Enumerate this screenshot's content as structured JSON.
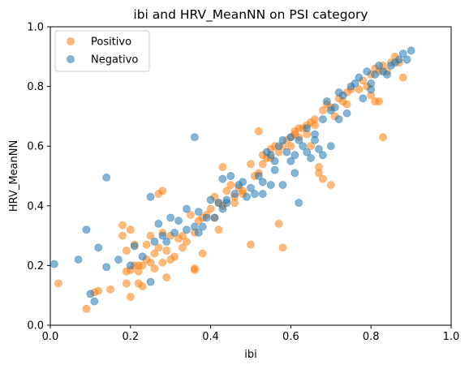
{
  "chart_data": {
    "type": "scatter",
    "title": "ibi and HRV_MeanNN on PSI category",
    "xlabel": "ibi",
    "ylabel": "HRV_MeanNN",
    "xlim": [
      0,
      1
    ],
    "ylim": [
      0,
      1
    ],
    "xticks": [
      "0.0",
      "0.2",
      "0.4",
      "0.6",
      "0.8",
      "1.0"
    ],
    "yticks": [
      "0.0",
      "0.2",
      "0.4",
      "0.6",
      "0.8",
      "1.0"
    ],
    "grid": false,
    "legend_position": "top-left",
    "series": [
      {
        "name": "Positivo",
        "color": "#ff7f0e",
        "points": [
          [
            0.02,
            0.14
          ],
          [
            0.09,
            0.055
          ],
          [
            0.11,
            0.11
          ],
          [
            0.12,
            0.115
          ],
          [
            0.18,
            0.335
          ],
          [
            0.18,
            0.3
          ],
          [
            0.19,
            0.25
          ],
          [
            0.19,
            0.18
          ],
          [
            0.19,
            0.14
          ],
          [
            0.2,
            0.185
          ],
          [
            0.2,
            0.095
          ],
          [
            0.2,
            0.32
          ],
          [
            0.21,
            0.27
          ],
          [
            0.21,
            0.2
          ],
          [
            0.22,
            0.2
          ],
          [
            0.22,
            0.14
          ],
          [
            0.23,
            0.2
          ],
          [
            0.23,
            0.13
          ],
          [
            0.24,
            0.22
          ],
          [
            0.24,
            0.27
          ],
          [
            0.25,
            0.3
          ],
          [
            0.25,
            0.21
          ],
          [
            0.26,
            0.24
          ],
          [
            0.26,
            0.19
          ],
          [
            0.27,
            0.44
          ],
          [
            0.27,
            0.26
          ],
          [
            0.28,
            0.45
          ],
          [
            0.28,
            0.31
          ],
          [
            0.28,
            0.21
          ],
          [
            0.29,
            0.25
          ],
          [
            0.29,
            0.16
          ],
          [
            0.3,
            0.3
          ],
          [
            0.3,
            0.22
          ],
          [
            0.31,
            0.23
          ],
          [
            0.32,
            0.29
          ],
          [
            0.33,
            0.26
          ],
          [
            0.34,
            0.28
          ],
          [
            0.35,
            0.37
          ],
          [
            0.36,
            0.31
          ],
          [
            0.36,
            0.19
          ],
          [
            0.36,
            0.185
          ],
          [
            0.37,
            0.35
          ],
          [
            0.38,
            0.24
          ],
          [
            0.38,
            0.36
          ],
          [
            0.39,
            0.37
          ],
          [
            0.4,
            0.39
          ],
          [
            0.41,
            0.43
          ],
          [
            0.41,
            0.36
          ],
          [
            0.42,
            0.41
          ],
          [
            0.42,
            0.32
          ],
          [
            0.43,
            0.53
          ],
          [
            0.43,
            0.4
          ],
          [
            0.44,
            0.45
          ],
          [
            0.45,
            0.47
          ],
          [
            0.46,
            0.43
          ],
          [
            0.47,
            0.46
          ],
          [
            0.48,
            0.45
          ],
          [
            0.5,
            0.54
          ],
          [
            0.5,
            0.27
          ],
          [
            0.51,
            0.5
          ],
          [
            0.52,
            0.65
          ],
          [
            0.52,
            0.51
          ],
          [
            0.53,
            0.54
          ],
          [
            0.54,
            0.56
          ],
          [
            0.55,
            0.56
          ],
          [
            0.56,
            0.6
          ],
          [
            0.57,
            0.58
          ],
          [
            0.57,
            0.34
          ],
          [
            0.58,
            0.26
          ],
          [
            0.58,
            0.6
          ],
          [
            0.59,
            0.62
          ],
          [
            0.6,
            0.63
          ],
          [
            0.6,
            0.6
          ],
          [
            0.61,
            0.64
          ],
          [
            0.62,
            0.66
          ],
          [
            0.62,
            0.63
          ],
          [
            0.63,
            0.66
          ],
          [
            0.64,
            0.67
          ],
          [
            0.64,
            0.64
          ],
          [
            0.65,
            0.68
          ],
          [
            0.65,
            0.6
          ],
          [
            0.66,
            0.67
          ],
          [
            0.66,
            0.69
          ],
          [
            0.67,
            0.53
          ],
          [
            0.67,
            0.51
          ],
          [
            0.68,
            0.49
          ],
          [
            0.68,
            0.72
          ],
          [
            0.69,
            0.74
          ],
          [
            0.7,
            0.73
          ],
          [
            0.7,
            0.47
          ],
          [
            0.71,
            0.7
          ],
          [
            0.72,
            0.76
          ],
          [
            0.73,
            0.75
          ],
          [
            0.74,
            0.78
          ],
          [
            0.75,
            0.79
          ],
          [
            0.77,
            0.79
          ],
          [
            0.78,
            0.82
          ],
          [
            0.79,
            0.8
          ],
          [
            0.8,
            0.84
          ],
          [
            0.8,
            0.77
          ],
          [
            0.81,
            0.86
          ],
          [
            0.81,
            0.75
          ],
          [
            0.82,
            0.85
          ],
          [
            0.82,
            0.75
          ],
          [
            0.83,
            0.63
          ],
          [
            0.83,
            0.87
          ],
          [
            0.84,
            0.85
          ],
          [
            0.85,
            0.88
          ],
          [
            0.86,
            0.9
          ],
          [
            0.87,
            0.88
          ],
          [
            0.88,
            0.83
          ],
          [
            0.15,
            0.12
          ],
          [
            0.22,
            0.18
          ],
          [
            0.33,
            0.3
          ],
          [
            0.46,
            0.41
          ],
          [
            0.53,
            0.57
          ],
          [
            0.61,
            0.65
          ],
          [
            0.74,
            0.74
          ],
          [
            0.55,
            0.59
          ],
          [
            0.48,
            0.44
          ]
        ]
      },
      {
        "name": "Negativo",
        "color": "#1f77b4",
        "points": [
          [
            0.01,
            0.205
          ],
          [
            0.07,
            0.22
          ],
          [
            0.09,
            0.32
          ],
          [
            0.1,
            0.105
          ],
          [
            0.11,
            0.08
          ],
          [
            0.12,
            0.26
          ],
          [
            0.14,
            0.495
          ],
          [
            0.14,
            0.195
          ],
          [
            0.17,
            0.22
          ],
          [
            0.2,
            0.2
          ],
          [
            0.21,
            0.265
          ],
          [
            0.25,
            0.145
          ],
          [
            0.25,
            0.43
          ],
          [
            0.26,
            0.28
          ],
          [
            0.27,
            0.34
          ],
          [
            0.28,
            0.3
          ],
          [
            0.29,
            0.28
          ],
          [
            0.3,
            0.36
          ],
          [
            0.31,
            0.31
          ],
          [
            0.32,
            0.35
          ],
          [
            0.34,
            0.32
          ],
          [
            0.34,
            0.39
          ],
          [
            0.36,
            0.63
          ],
          [
            0.36,
            0.33
          ],
          [
            0.37,
            0.31
          ],
          [
            0.38,
            0.33
          ],
          [
            0.39,
            0.36
          ],
          [
            0.4,
            0.42
          ],
          [
            0.41,
            0.36
          ],
          [
            0.42,
            0.41
          ],
          [
            0.43,
            0.39
          ],
          [
            0.43,
            0.49
          ],
          [
            0.44,
            0.42
          ],
          [
            0.45,
            0.5
          ],
          [
            0.46,
            0.44
          ],
          [
            0.47,
            0.47
          ],
          [
            0.48,
            0.48
          ],
          [
            0.49,
            0.43
          ],
          [
            0.5,
            0.46
          ],
          [
            0.51,
            0.44
          ],
          [
            0.52,
            0.5
          ],
          [
            0.53,
            0.48
          ],
          [
            0.53,
            0.44
          ],
          [
            0.54,
            0.58
          ],
          [
            0.55,
            0.57
          ],
          [
            0.55,
            0.47
          ],
          [
            0.56,
            0.55
          ],
          [
            0.57,
            0.6
          ],
          [
            0.58,
            0.62
          ],
          [
            0.58,
            0.47
          ],
          [
            0.59,
            0.58
          ],
          [
            0.6,
            0.63
          ],
          [
            0.6,
            0.55
          ],
          [
            0.61,
            0.51
          ],
          [
            0.62,
            0.41
          ],
          [
            0.62,
            0.62
          ],
          [
            0.63,
            0.6
          ],
          [
            0.64,
            0.66
          ],
          [
            0.64,
            0.58
          ],
          [
            0.65,
            0.56
          ],
          [
            0.66,
            0.64
          ],
          [
            0.67,
            0.59
          ],
          [
            0.68,
            0.57
          ],
          [
            0.68,
            0.69
          ],
          [
            0.69,
            0.75
          ],
          [
            0.7,
            0.72
          ],
          [
            0.7,
            0.6
          ],
          [
            0.71,
            0.73
          ],
          [
            0.72,
            0.78
          ],
          [
            0.73,
            0.77
          ],
          [
            0.74,
            0.71
          ],
          [
            0.75,
            0.8
          ],
          [
            0.76,
            0.81
          ],
          [
            0.77,
            0.83
          ],
          [
            0.78,
            0.76
          ],
          [
            0.79,
            0.85
          ],
          [
            0.8,
            0.81
          ],
          [
            0.8,
            0.79
          ],
          [
            0.81,
            0.84
          ],
          [
            0.82,
            0.87
          ],
          [
            0.83,
            0.85
          ],
          [
            0.84,
            0.84
          ],
          [
            0.85,
            0.87
          ],
          [
            0.86,
            0.88
          ],
          [
            0.87,
            0.89
          ],
          [
            0.88,
            0.91
          ],
          [
            0.89,
            0.89
          ],
          [
            0.9,
            0.92
          ],
          [
            0.37,
            0.38
          ],
          [
            0.44,
            0.41
          ],
          [
            0.23,
            0.23
          ],
          [
            0.66,
            0.62
          ],
          [
            0.72,
            0.69
          ],
          [
            0.56,
            0.52
          ],
          [
            0.61,
            0.57
          ]
        ]
      }
    ]
  }
}
